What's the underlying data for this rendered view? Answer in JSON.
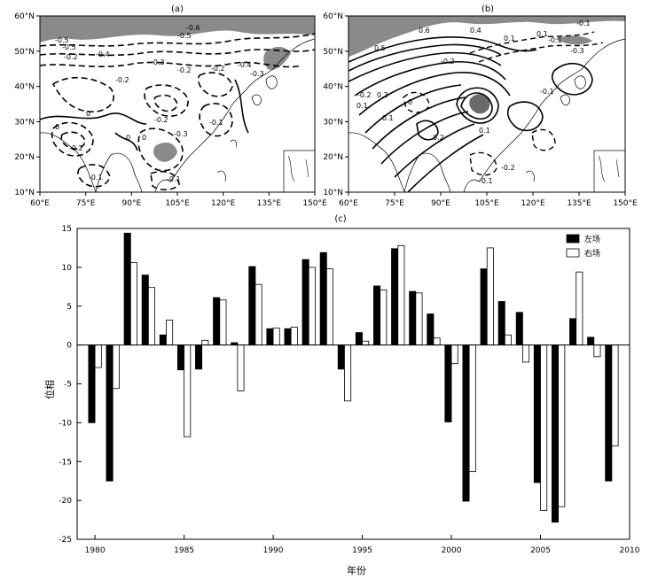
{
  "maps": {
    "a": {
      "panel_label": "(a)",
      "contour_labels": [
        "-0.6",
        "-0.5",
        "-0.5",
        "-0.5",
        "-0.2",
        "-0.4",
        "-0.3",
        "-0.2",
        "-0.2",
        "-0.4",
        "-0.3",
        "0",
        "0",
        "0",
        "-0.2",
        "-0.2",
        "-0.3",
        "-0.1",
        "0",
        "-0.1",
        "-0.2",
        "-0.1"
      ]
    },
    "b": {
      "panel_label": "(b)",
      "contour_labels": [
        "0.6",
        "0.5",
        "0.4",
        "0.1",
        "-0.1",
        "-0.1",
        "0.1",
        "-0.3",
        "-0.2",
        "-0.1",
        "0.2",
        "0.1",
        "-0.2",
        "0",
        "-0.1",
        "0.2",
        "0.1",
        "-0.2",
        "-0.1"
      ]
    },
    "lat_ticks": [
      "10°N",
      "20°N",
      "30°N",
      "40°N",
      "50°N",
      "60°N"
    ],
    "lon_ticks": [
      "60°E",
      "75°E",
      "90°E",
      "105°E",
      "120°E",
      "135°E",
      "150°E"
    ]
  },
  "chart_data": {
    "type": "bar",
    "panel_label": "(c)",
    "title": "",
    "xlabel": "年份",
    "ylabel": "位相",
    "xlim": [
      1979,
      2010
    ],
    "ylim": [
      -25,
      15
    ],
    "x_ticks": [
      1980,
      1985,
      1990,
      1995,
      2000,
      2005,
      2010
    ],
    "y_ticks": [
      -25,
      -20,
      -15,
      -10,
      -5,
      0,
      5,
      10,
      15
    ],
    "grid": false,
    "legend_position": "top-right",
    "categories": [
      1980,
      1981,
      1982,
      1983,
      1984,
      1985,
      1986,
      1987,
      1988,
      1989,
      1990,
      1991,
      1992,
      1993,
      1994,
      1995,
      1996,
      1997,
      1998,
      1999,
      2000,
      2001,
      2002,
      2003,
      2004,
      2005,
      2006,
      2007,
      2008,
      2009
    ],
    "series": [
      {
        "name": "左场",
        "color": "#000000",
        "values": [
          -10.0,
          -17.5,
          14.4,
          9.0,
          1.3,
          -3.2,
          -3.1,
          6.1,
          0.3,
          10.1,
          2.1,
          2.1,
          11.0,
          11.9,
          -3.1,
          1.6,
          7.6,
          12.4,
          6.9,
          4.0,
          -9.9,
          -20.1,
          9.8,
          5.6,
          4.2,
          -17.7,
          -22.8,
          3.4,
          1.0,
          -17.5
        ]
      },
      {
        "name": "右场",
        "color": "#ffffff",
        "values": [
          -2.9,
          -5.6,
          10.6,
          7.4,
          3.2,
          -11.8,
          0.6,
          5.8,
          -5.9,
          7.8,
          2.2,
          2.3,
          10.0,
          9.8,
          -7.2,
          0.5,
          7.1,
          12.8,
          6.7,
          0.9,
          -2.4,
          -16.3,
          12.5,
          1.3,
          -2.2,
          -21.3,
          -20.8,
          9.4,
          -1.5,
          -13.0
        ]
      }
    ]
  }
}
